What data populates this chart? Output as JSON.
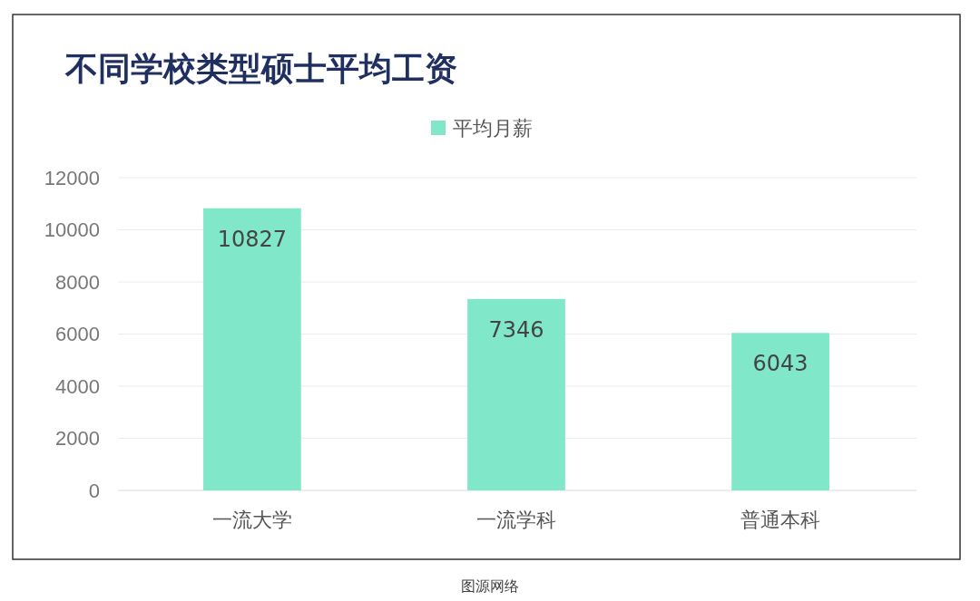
{
  "chart_data": {
    "type": "bar",
    "title": "不同学校类型硕士平均工资",
    "categories": [
      "一流大学",
      "一流学科",
      "普通本科"
    ],
    "series": [
      {
        "name": "平均月薪",
        "color": "#80e8c8",
        "values": [
          10827,
          7346,
          6043
        ]
      }
    ],
    "ylim": [
      0,
      12000
    ],
    "yticks": [
      0,
      2000,
      4000,
      6000,
      8000,
      10000,
      12000
    ],
    "grid": "y",
    "legend": "top",
    "data_labels": true,
    "annotations": [
      "图源网络"
    ]
  }
}
